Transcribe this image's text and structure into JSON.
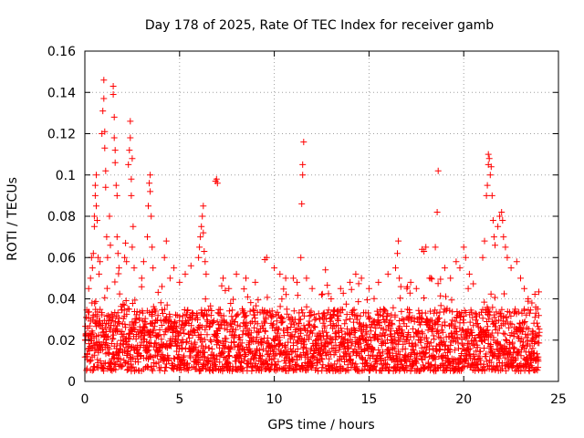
{
  "chart_data": {
    "type": "scatter",
    "title": "Day 178 of 2025, Rate Of TEC Index for receiver gamb",
    "xlabel": "GPS time / hours",
    "ylabel": "ROTI / TECUs",
    "xlim": [
      0,
      25
    ],
    "ylim": [
      0,
      0.16
    ],
    "x_ticks": [
      0,
      5,
      10,
      15,
      20,
      25
    ],
    "y_ticks": [
      0,
      0.02,
      0.04,
      0.06,
      0.08,
      0.1,
      0.12,
      0.14,
      0.16
    ],
    "x_tick_labels": [
      "0",
      "5",
      "10",
      "15",
      "20",
      "25"
    ],
    "y_tick_labels": [
      "0",
      "0.02",
      "0.04",
      "0.06",
      "0.08",
      "0.1",
      "0.12",
      "0.14",
      "0.16"
    ],
    "grid": true,
    "marker": "plus",
    "color": "#ff0000",
    "baseline_band": {
      "x_range": [
        0,
        24
      ],
      "typical_range": [
        0.005,
        0.035
      ],
      "note": "dense cloud of ROTI samples across the whole day"
    },
    "series": [
      {
        "name": "ROTI",
        "points": [
          [
            0.2,
            0.045
          ],
          [
            0.3,
            0.05
          ],
          [
            0.35,
            0.06
          ],
          [
            0.4,
            0.055
          ],
          [
            0.45,
            0.062
          ],
          [
            0.5,
            0.075
          ],
          [
            0.5,
            0.08
          ],
          [
            0.55,
            0.09
          ],
          [
            0.55,
            0.095
          ],
          [
            0.6,
            0.1
          ],
          [
            0.6,
            0.085
          ],
          [
            0.65,
            0.078
          ],
          [
            0.7,
            0.06
          ],
          [
            0.75,
            0.052
          ],
          [
            0.8,
            0.058
          ],
          [
            0.9,
            0.12
          ],
          [
            0.95,
            0.131
          ],
          [
            1.0,
            0.137
          ],
          [
            1.0,
            0.146
          ],
          [
            1.05,
            0.113
          ],
          [
            1.05,
            0.121
          ],
          [
            1.1,
            0.102
          ],
          [
            1.1,
            0.094
          ],
          [
            1.15,
            0.07
          ],
          [
            1.2,
            0.06
          ],
          [
            1.3,
            0.08
          ],
          [
            1.35,
            0.066
          ],
          [
            1.5,
            0.139
          ],
          [
            1.5,
            0.143
          ],
          [
            1.55,
            0.128
          ],
          [
            1.55,
            0.118
          ],
          [
            1.6,
            0.112
          ],
          [
            1.6,
            0.106
          ],
          [
            1.65,
            0.095
          ],
          [
            1.7,
            0.09
          ],
          [
            1.7,
            0.07
          ],
          [
            1.75,
            0.062
          ],
          [
            1.8,
            0.055
          ],
          [
            2.1,
            0.06
          ],
          [
            2.15,
            0.067
          ],
          [
            2.2,
            0.058
          ],
          [
            2.3,
            0.105
          ],
          [
            2.35,
            0.112
          ],
          [
            2.4,
            0.118
          ],
          [
            2.4,
            0.126
          ],
          [
            2.45,
            0.09
          ],
          [
            2.45,
            0.098
          ],
          [
            2.5,
            0.108
          ],
          [
            2.5,
            0.065
          ],
          [
            2.55,
            0.075
          ],
          [
            2.6,
            0.055
          ],
          [
            3.0,
            0.05
          ],
          [
            3.1,
            0.058
          ],
          [
            3.3,
            0.07
          ],
          [
            3.35,
            0.085
          ],
          [
            3.4,
            0.096
          ],
          [
            3.45,
            0.1
          ],
          [
            3.45,
            0.092
          ],
          [
            3.5,
            0.08
          ],
          [
            3.55,
            0.065
          ],
          [
            3.6,
            0.055
          ],
          [
            4.2,
            0.06
          ],
          [
            4.3,
            0.068
          ],
          [
            4.5,
            0.05
          ],
          [
            4.7,
            0.055
          ],
          [
            5.0,
            0.048
          ],
          [
            5.3,
            0.052
          ],
          [
            5.6,
            0.056
          ],
          [
            6.0,
            0.06
          ],
          [
            6.05,
            0.065
          ],
          [
            6.1,
            0.07
          ],
          [
            6.15,
            0.075
          ],
          [
            6.2,
            0.08
          ],
          [
            6.25,
            0.085
          ],
          [
            6.25,
            0.072
          ],
          [
            6.3,
            0.063
          ],
          [
            6.35,
            0.058
          ],
          [
            6.4,
            0.052
          ],
          [
            6.9,
            0.097
          ],
          [
            6.95,
            0.098
          ],
          [
            7.0,
            0.096
          ],
          [
            7.3,
            0.05
          ],
          [
            7.6,
            0.045
          ],
          [
            8.0,
            0.052
          ],
          [
            8.5,
            0.05
          ],
          [
            9.0,
            0.048
          ],
          [
            9.5,
            0.059
          ],
          [
            9.6,
            0.06
          ],
          [
            10.0,
            0.055
          ],
          [
            10.3,
            0.052
          ],
          [
            10.6,
            0.05
          ],
          [
            11.0,
            0.05
          ],
          [
            11.2,
            0.048
          ],
          [
            11.4,
            0.06
          ],
          [
            11.45,
            0.086
          ],
          [
            11.5,
            0.1
          ],
          [
            11.5,
            0.105
          ],
          [
            11.55,
            0.116
          ],
          [
            11.7,
            0.05
          ],
          [
            12.0,
            0.045
          ],
          [
            12.5,
            0.042
          ],
          [
            12.7,
            0.054
          ],
          [
            13.0,
            0.04
          ],
          [
            13.5,
            0.045
          ],
          [
            14.0,
            0.048
          ],
          [
            14.3,
            0.052
          ],
          [
            14.6,
            0.05
          ],
          [
            15.0,
            0.045
          ],
          [
            15.5,
            0.048
          ],
          [
            16.0,
            0.052
          ],
          [
            16.4,
            0.055
          ],
          [
            16.5,
            0.062
          ],
          [
            16.55,
            0.068
          ],
          [
            16.6,
            0.05
          ],
          [
            17.0,
            0.045
          ],
          [
            17.2,
            0.048
          ],
          [
            17.5,
            0.045
          ],
          [
            17.8,
            0.064
          ],
          [
            17.9,
            0.063
          ],
          [
            18.0,
            0.065
          ],
          [
            18.2,
            0.05
          ],
          [
            18.5,
            0.065
          ],
          [
            18.6,
            0.082
          ],
          [
            18.65,
            0.102
          ],
          [
            19.0,
            0.055
          ],
          [
            19.3,
            0.05
          ],
          [
            19.6,
            0.058
          ],
          [
            19.8,
            0.055
          ],
          [
            20.0,
            0.065
          ],
          [
            20.1,
            0.06
          ],
          [
            20.3,
            0.052
          ],
          [
            21.0,
            0.06
          ],
          [
            21.1,
            0.068
          ],
          [
            21.2,
            0.09
          ],
          [
            21.25,
            0.095
          ],
          [
            21.3,
            0.105
          ],
          [
            21.3,
            0.11
          ],
          [
            21.35,
            0.108
          ],
          [
            21.4,
            0.1
          ],
          [
            21.45,
            0.104
          ],
          [
            21.5,
            0.09
          ],
          [
            21.55,
            0.078
          ],
          [
            21.6,
            0.07
          ],
          [
            21.65,
            0.066
          ],
          [
            21.8,
            0.075
          ],
          [
            21.9,
            0.08
          ],
          [
            22.0,
            0.082
          ],
          [
            22.05,
            0.078
          ],
          [
            22.1,
            0.07
          ],
          [
            22.2,
            0.065
          ],
          [
            22.3,
            0.06
          ],
          [
            22.5,
            0.055
          ],
          [
            22.8,
            0.058
          ],
          [
            23.0,
            0.05
          ],
          [
            23.2,
            0.045
          ],
          [
            23.4,
            0.04
          ],
          [
            23.6,
            0.038
          ],
          [
            23.8,
            0.036
          ],
          [
            23.9,
            0.035
          ]
        ]
      }
    ]
  }
}
